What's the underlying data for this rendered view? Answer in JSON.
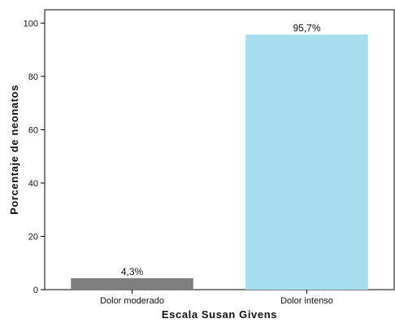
{
  "chart_data": {
    "type": "bar",
    "categories": [
      "Dolor moderado",
      "Dolor intenso"
    ],
    "values": [
      4.3,
      95.7
    ],
    "value_labels": [
      "4,3%",
      "95,7%"
    ],
    "title": "",
    "xlabel": "Escala Susan Givens",
    "ylabel": "Porcentaje de neonatos",
    "ylim": [
      0,
      105
    ],
    "yticks": [
      0,
      20,
      40,
      60,
      80,
      100
    ],
    "ytick_labels": [
      "0",
      "20",
      "40",
      "60",
      "80",
      "100"
    ],
    "grid": false,
    "legend": "none",
    "colors": [
      "#7f7f7f",
      "#a6deef"
    ]
  }
}
